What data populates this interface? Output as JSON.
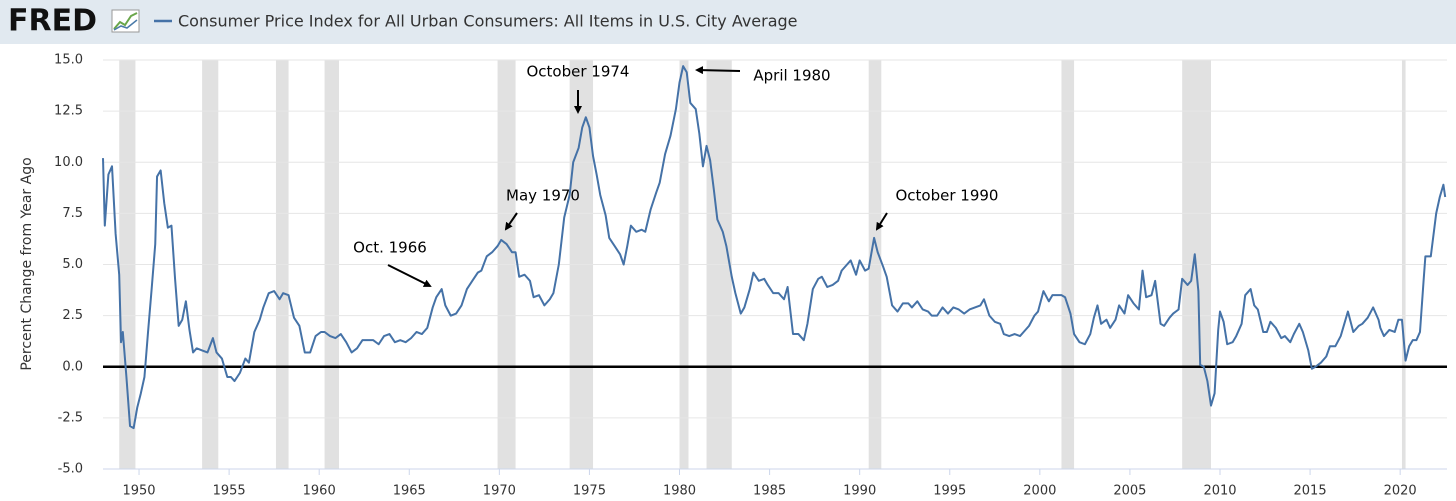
{
  "chart_data": {
    "type": "line",
    "logo": "FRED",
    "ylabel": "Percent Change from Year Ago",
    "xlim": [
      1948,
      2022.6
    ],
    "xticks": [
      1950,
      1955,
      1960,
      1965,
      1970,
      1975,
      1980,
      1985,
      1990,
      1995,
      2000,
      2005,
      2010,
      2015,
      2020
    ],
    "ylim": [
      -5,
      15
    ],
    "yticks": [
      {
        "value": -5,
        "label": "-5.0"
      },
      -2.5,
      {
        "value": 0,
        "label": "0.0"
      },
      2.5,
      {
        "value": 5,
        "label": "5.0"
      },
      7.5,
      {
        "value": 10,
        "label": "10.0"
      },
      12.5,
      {
        "value": 15,
        "label": "15.0"
      }
    ],
    "recession_color": "#e1e1e1",
    "recessions": [
      [
        1948.9,
        1949.8
      ],
      [
        1953.5,
        1954.4
      ],
      [
        1957.6,
        1958.3
      ],
      [
        1960.3,
        1961.1
      ],
      [
        1969.9,
        1970.9
      ],
      [
        1973.9,
        1975.2
      ],
      [
        1980.0,
        1980.5
      ],
      [
        1981.5,
        1982.9
      ],
      [
        1990.5,
        1991.2
      ],
      [
        2001.2,
        2001.9
      ],
      [
        2007.9,
        2009.5
      ],
      [
        2020.1,
        2020.3
      ]
    ],
    "annotations": [
      "Oct. 1966",
      "May 1970",
      "October 1974",
      "April 1980",
      "October 1990"
    ],
    "x": [
      1948.0,
      1948.1,
      1948.3,
      1948.5,
      1948.7,
      1948.9,
      1949.0,
      1949.1,
      1949.3,
      1949.5,
      1949.7,
      1949.9,
      1950.1,
      1950.3,
      1950.5,
      1950.7,
      1950.9,
      1951.0,
      1951.2,
      1951.4,
      1951.6,
      1951.8,
      1952.0,
      1952.2,
      1952.4,
      1952.6,
      1952.8,
      1953.0,
      1953.2,
      1953.5,
      1953.8,
      1954.1,
      1954.3,
      1954.6,
      1954.9,
      1955.1,
      1955.3,
      1955.6,
      1955.9,
      1956.1,
      1956.4,
      1956.7,
      1956.9,
      1957.2,
      1957.5,
      1957.8,
      1958.0,
      1958.3,
      1958.6,
      1958.9,
      1959.2,
      1959.5,
      1959.8,
      1960.1,
      1960.3,
      1960.6,
      1960.9,
      1961.2,
      1961.5,
      1961.8,
      1962.1,
      1962.4,
      1962.7,
      1963.0,
      1963.3,
      1963.6,
      1963.9,
      1964.2,
      1964.5,
      1964.8,
      1965.1,
      1965.4,
      1965.7,
      1966.0,
      1966.3,
      1966.5,
      1966.8,
      1967.0,
      1967.3,
      1967.6,
      1967.9,
      1968.2,
      1968.5,
      1968.8,
      1969.0,
      1969.3,
      1969.6,
      1969.9,
      1970.1,
      1970.4,
      1970.7,
      1970.9,
      1971.1,
      1971.4,
      1971.7,
      1971.9,
      1972.2,
      1972.5,
      1972.8,
      1973.0,
      1973.3,
      1973.6,
      1973.9,
      1974.1,
      1974.4,
      1974.6,
      1974.8,
      1975.0,
      1975.2,
      1975.4,
      1975.6,
      1975.9,
      1976.1,
      1976.4,
      1976.7,
      1976.9,
      1977.1,
      1977.3,
      1977.6,
      1977.9,
      1978.1,
      1978.4,
      1978.7,
      1978.9,
      1979.2,
      1979.5,
      1979.8,
      1980.0,
      1980.2,
      1980.4,
      1980.6,
      1980.9,
      1981.1,
      1981.3,
      1981.5,
      1981.7,
      1981.9,
      1982.1,
      1982.4,
      1982.6,
      1982.9,
      1983.1,
      1983.4,
      1983.6,
      1983.9,
      1984.1,
      1984.4,
      1984.7,
      1984.9,
      1985.2,
      1985.5,
      1985.8,
      1986.0,
      1986.3,
      1986.6,
      1986.9,
      1987.1,
      1987.4,
      1987.7,
      1987.9,
      1988.2,
      1988.5,
      1988.8,
      1989.0,
      1989.3,
      1989.5,
      1989.8,
      1990.0,
      1990.3,
      1990.5,
      1990.8,
      1991.0,
      1991.3,
      1991.5,
      1991.8,
      1992.1,
      1992.4,
      1992.7,
      1992.9,
      1993.2,
      1993.5,
      1993.8,
      1994.0,
      1994.3,
      1994.6,
      1994.9,
      1995.2,
      1995.5,
      1995.8,
      1996.1,
      1996.4,
      1996.7,
      1996.9,
      1997.2,
      1997.5,
      1997.8,
      1998.0,
      1998.3,
      1998.6,
      1998.9,
      1999.1,
      1999.4,
      1999.7,
      1999.9,
      2000.2,
      2000.5,
      2000.7,
      2000.9,
      2001.2,
      2001.4,
      2001.7,
      2001.9,
      2002.2,
      2002.5,
      2002.8,
      2003.0,
      2003.2,
      2003.4,
      2003.7,
      2003.9,
      2004.2,
      2004.4,
      2004.7,
      2004.9,
      2005.2,
      2005.5,
      2005.7,
      2005.9,
      2006.2,
      2006.4,
      2006.7,
      2006.9,
      2007.2,
      2007.4,
      2007.7,
      2007.9,
      2008.2,
      2008.4,
      2008.6,
      2008.8,
      2008.9,
      2009.1,
      2009.3,
      2009.5,
      2009.7,
      2009.9,
      2010.0,
      2010.2,
      2010.4,
      2010.7,
      2010.9,
      2011.2,
      2011.4,
      2011.7,
      2011.9,
      2012.1,
      2012.4,
      2012.6,
      2012.8,
      2013.1,
      2013.4,
      2013.6,
      2013.9,
      2014.1,
      2014.4,
      2014.6,
      2014.9,
      2015.1,
      2015.3,
      2015.6,
      2015.9,
      2016.1,
      2016.4,
      2016.7,
      2016.9,
      2017.1,
      2017.4,
      2017.7,
      2017.9,
      2018.2,
      2018.5,
      2018.8,
      2018.9,
      2019.1,
      2019.4,
      2019.7,
      2019.9,
      2020.1,
      2020.3,
      2020.5,
      2020.7,
      2020.9,
      2021.1,
      2021.3,
      2021.4,
      2021.7,
      2021.9,
      2022.0,
      2022.2,
      2022.4,
      2022.5
    ],
    "series": [
      {
        "name": "Consumer Price Index for All Urban Consumers: All Items in U.S. City Average",
        "color": "#4572a7",
        "values": [
          10.2,
          6.9,
          9.4,
          9.8,
          6.5,
          4.5,
          1.2,
          1.7,
          -0.5,
          -2.9,
          -3.0,
          -2.0,
          -1.3,
          -0.5,
          1.7,
          3.8,
          6.0,
          9.3,
          9.6,
          8.0,
          6.8,
          6.9,
          4.3,
          2.0,
          2.3,
          3.2,
          1.8,
          0.7,
          0.9,
          0.8,
          0.7,
          1.4,
          0.7,
          0.4,
          -0.5,
          -0.5,
          -0.7,
          -0.3,
          0.4,
          0.2,
          1.7,
          2.3,
          2.9,
          3.6,
          3.7,
          3.3,
          3.6,
          3.5,
          2.4,
          2.0,
          0.7,
          0.7,
          1.5,
          1.7,
          1.7,
          1.5,
          1.4,
          1.6,
          1.2,
          0.7,
          0.9,
          1.3,
          1.3,
          1.3,
          1.1,
          1.5,
          1.6,
          1.2,
          1.3,
          1.2,
          1.4,
          1.7,
          1.6,
          1.9,
          2.9,
          3.4,
          3.8,
          3.0,
          2.5,
          2.6,
          3.0,
          3.8,
          4.2,
          4.6,
          4.7,
          5.4,
          5.6,
          5.9,
          6.2,
          6.0,
          5.6,
          5.6,
          4.4,
          4.5,
          4.2,
          3.4,
          3.5,
          3.0,
          3.3,
          3.6,
          5.0,
          7.3,
          8.4,
          10.0,
          10.7,
          11.7,
          12.2,
          11.7,
          10.3,
          9.4,
          8.4,
          7.4,
          6.3,
          5.9,
          5.5,
          5.0,
          5.9,
          6.9,
          6.6,
          6.7,
          6.6,
          7.7,
          8.5,
          9.0,
          10.4,
          11.3,
          12.6,
          13.9,
          14.7,
          14.4,
          12.9,
          12.6,
          11.4,
          9.8,
          10.8,
          10.1,
          8.7,
          7.2,
          6.6,
          5.9,
          4.4,
          3.6,
          2.6,
          2.9,
          3.8,
          4.6,
          4.2,
          4.3,
          4.0,
          3.6,
          3.6,
          3.3,
          3.9,
          1.6,
          1.6,
          1.3,
          2.1,
          3.8,
          4.3,
          4.4,
          3.9,
          4.0,
          4.2,
          4.7,
          5.0,
          5.2,
          4.5,
          5.2,
          4.7,
          4.8,
          6.3,
          5.6,
          4.9,
          4.4,
          3.0,
          2.7,
          3.1,
          3.1,
          2.9,
          3.2,
          2.8,
          2.7,
          2.5,
          2.5,
          2.9,
          2.6,
          2.9,
          2.8,
          2.6,
          2.8,
          2.9,
          3.0,
          3.3,
          2.5,
          2.2,
          2.1,
          1.6,
          1.5,
          1.6,
          1.5,
          1.7,
          2.0,
          2.5,
          2.7,
          3.7,
          3.2,
          3.5,
          3.5,
          3.5,
          3.4,
          2.6,
          1.6,
          1.2,
          1.1,
          1.6,
          2.4,
          3.0,
          2.1,
          2.3,
          1.9,
          2.3,
          3.0,
          2.6,
          3.5,
          3.1,
          2.8,
          4.7,
          3.4,
          3.5,
          4.2,
          2.1,
          2.0,
          2.4,
          2.6,
          2.8,
          4.3,
          4.0,
          4.2,
          5.5,
          3.7,
          0.1,
          0.0,
          -0.7,
          -1.9,
          -1.3,
          1.8,
          2.7,
          2.2,
          1.1,
          1.2,
          1.5,
          2.1,
          3.5,
          3.8,
          3.0,
          2.8,
          1.7,
          1.7,
          2.2,
          1.9,
          1.4,
          1.5,
          1.2,
          1.6,
          2.1,
          1.7,
          0.8,
          -0.1,
          0.0,
          0.2,
          0.5,
          1.0,
          1.0,
          1.5,
          2.1,
          2.7,
          1.7,
          2.0,
          2.1,
          2.4,
          2.9,
          2.3,
          1.9,
          1.5,
          1.8,
          1.7,
          2.3,
          2.3,
          0.3,
          1.0,
          1.3,
          1.3,
          1.7,
          4.2,
          5.4,
          5.4,
          6.8,
          7.5,
          8.3,
          8.9,
          8.3
        ]
      }
    ]
  }
}
